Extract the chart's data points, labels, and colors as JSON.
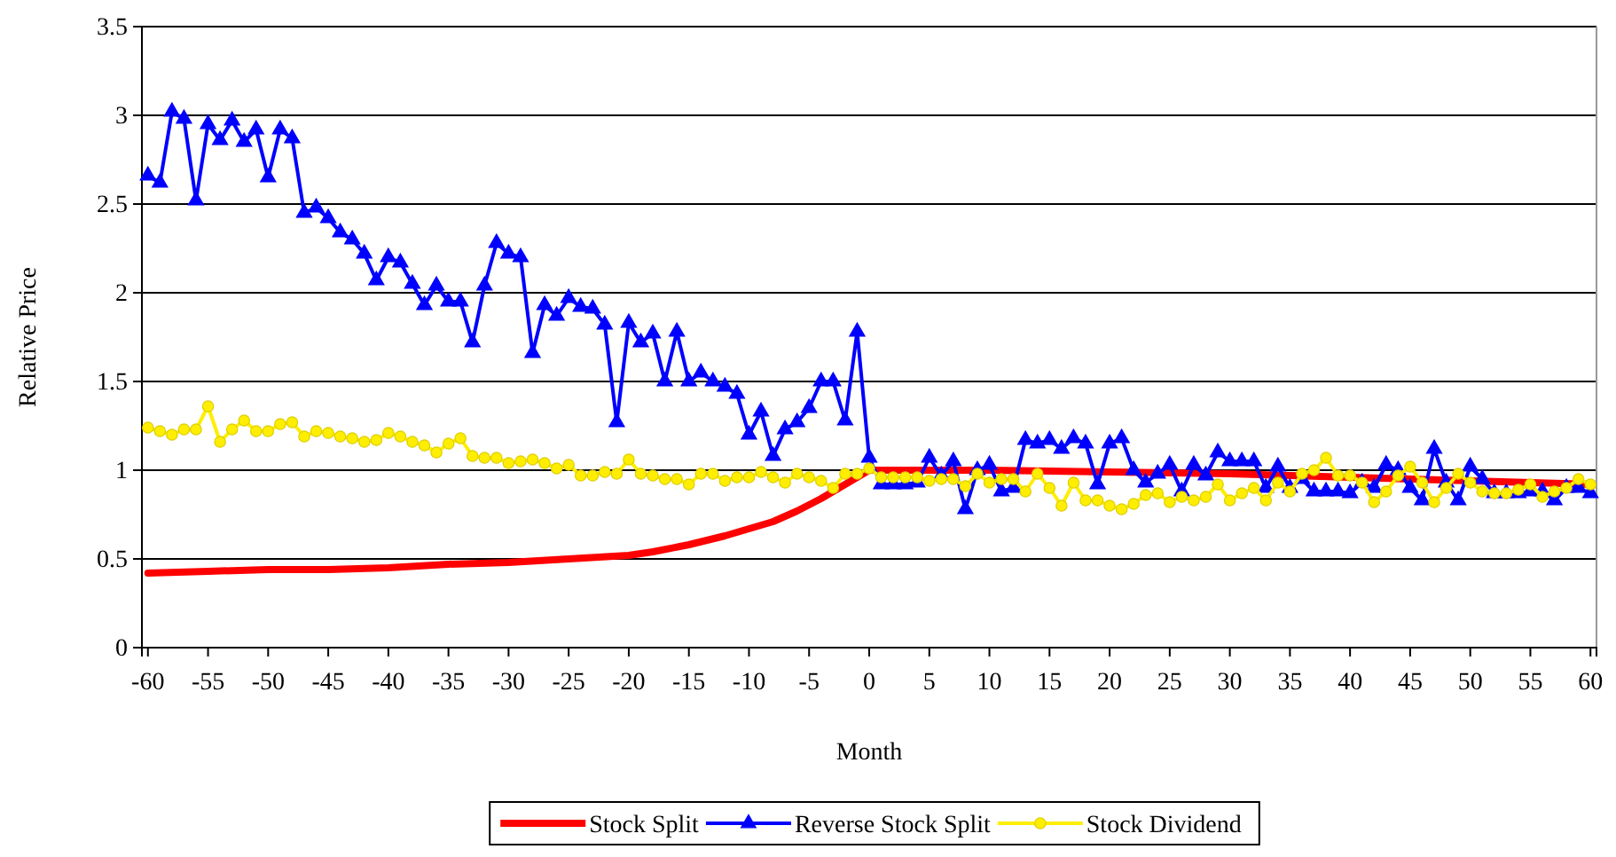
{
  "chart_data": {
    "type": "line",
    "xlabel": "Month",
    "ylabel": "Relative Price",
    "xlim": [
      -60.5,
      60.5
    ],
    "xticks": [
      -60,
      -55,
      -50,
      -45,
      -40,
      -35,
      -30,
      -25,
      -20,
      -15,
      -10,
      -5,
      0,
      5,
      10,
      15,
      20,
      25,
      30,
      35,
      40,
      45,
      50,
      55,
      60
    ],
    "ylim": [
      0,
      3.5
    ],
    "yticks": [
      0,
      {
        "value": 0.5,
        "label": "0.5"
      },
      1,
      {
        "value": 1.5,
        "label": "1.5"
      },
      2,
      {
        "value": 2.5,
        "label": "2.5"
      },
      3,
      {
        "value": 3.5,
        "label": "3.5"
      }
    ],
    "grid": "y",
    "legend": "bottom",
    "x": [
      -60,
      -59,
      -58,
      -57,
      -56,
      -55,
      -54,
      -53,
      -52,
      -51,
      -50,
      -49,
      -48,
      -47,
      -46,
      -45,
      -44,
      -43,
      -42,
      -41,
      -40,
      -39,
      -38,
      -37,
      -36,
      -35,
      -34,
      -33,
      -32,
      -31,
      -30,
      -29,
      -28,
      -27,
      -26,
      -25,
      -24,
      -23,
      -22,
      -21,
      -20,
      -19,
      -18,
      -17,
      -16,
      -15,
      -14,
      -13,
      -12,
      -11,
      -10,
      -9,
      -8,
      -7,
      -6,
      -5,
      -4,
      -3,
      -2,
      -1,
      0,
      1,
      2,
      3,
      4,
      5,
      6,
      7,
      8,
      9,
      10,
      11,
      12,
      13,
      14,
      15,
      16,
      17,
      18,
      19,
      20,
      21,
      22,
      23,
      24,
      25,
      26,
      27,
      28,
      29,
      30,
      31,
      32,
      33,
      34,
      35,
      36,
      37,
      38,
      39,
      40,
      41,
      42,
      43,
      44,
      45,
      46,
      47,
      48,
      49,
      50,
      51,
      52,
      53,
      54,
      55,
      56,
      57,
      58,
      59,
      60
    ],
    "series": [
      {
        "name": "Stock Split",
        "color": "#ff0000",
        "marker": "none",
        "x": [
          -60,
          -55,
          -50,
          -45,
          -40,
          -35,
          -30,
          -25,
          -20,
          -18,
          -15,
          -12,
          -10,
          -8,
          -6,
          -4,
          -2,
          0,
          5,
          10,
          20,
          30,
          40,
          50,
          60
        ],
        "values": [
          0.42,
          0.43,
          0.44,
          0.44,
          0.45,
          0.47,
          0.48,
          0.5,
          0.52,
          0.54,
          0.58,
          0.63,
          0.67,
          0.71,
          0.77,
          0.84,
          0.92,
          1.0,
          1.0,
          1.0,
          0.99,
          0.98,
          0.96,
          0.94,
          0.92
        ]
      },
      {
        "name": "Reverse Stock Split",
        "color": "#0000ff",
        "marker": "triangle",
        "values": [
          2.66,
          2.62,
          3.02,
          2.98,
          2.52,
          2.95,
          2.86,
          2.97,
          2.85,
          2.92,
          2.65,
          2.92,
          2.87,
          2.45,
          2.48,
          2.42,
          2.34,
          2.3,
          2.22,
          2.07,
          2.2,
          2.17,
          2.05,
          1.93,
          2.04,
          1.95,
          1.95,
          1.72,
          2.04,
          2.28,
          2.22,
          2.2,
          1.66,
          1.93,
          1.87,
          1.97,
          1.92,
          1.91,
          1.82,
          1.27,
          1.83,
          1.72,
          1.77,
          1.5,
          1.78,
          1.5,
          1.55,
          1.5,
          1.47,
          1.43,
          1.2,
          1.33,
          1.08,
          1.23,
          1.27,
          1.35,
          1.5,
          1.5,
          1.28,
          1.78,
          1.07,
          0.92,
          0.92,
          0.92,
          0.93,
          1.07,
          0.97,
          1.05,
          0.78,
          1.0,
          1.03,
          0.88,
          0.9,
          1.17,
          1.15,
          1.17,
          1.12,
          1.18,
          1.15,
          0.92,
          1.15,
          1.18,
          1.0,
          0.93,
          0.98,
          1.03,
          0.88,
          1.03,
          0.97,
          1.1,
          1.05,
          1.05,
          1.05,
          0.9,
          1.02,
          0.9,
          0.95,
          0.88,
          0.88,
          0.88,
          0.87,
          0.93,
          0.9,
          1.03,
          1.0,
          0.9,
          0.83,
          1.12,
          0.93,
          0.83,
          1.02,
          0.95,
          0.87,
          0.87,
          0.87,
          0.88,
          0.88,
          0.83,
          0.9,
          0.9,
          0.87
        ]
      },
      {
        "name": "Stock Dividend",
        "color": "#ffee00",
        "marker": "circle",
        "values": [
          1.24,
          1.22,
          1.2,
          1.23,
          1.23,
          1.36,
          1.16,
          1.23,
          1.28,
          1.22,
          1.22,
          1.26,
          1.27,
          1.19,
          1.22,
          1.21,
          1.19,
          1.18,
          1.16,
          1.17,
          1.21,
          1.19,
          1.16,
          1.14,
          1.1,
          1.15,
          1.18,
          1.08,
          1.07,
          1.07,
          1.04,
          1.05,
          1.06,
          1.04,
          1.01,
          1.03,
          0.97,
          0.97,
          0.99,
          0.98,
          1.06,
          0.98,
          0.97,
          0.95,
          0.95,
          0.92,
          0.98,
          0.98,
          0.94,
          0.96,
          0.96,
          0.99,
          0.96,
          0.93,
          0.98,
          0.96,
          0.94,
          0.9,
          0.98,
          0.98,
          1.01,
          0.96,
          0.96,
          0.96,
          0.96,
          0.94,
          0.95,
          0.95,
          0.91,
          0.98,
          0.93,
          0.95,
          0.95,
          0.88,
          0.98,
          0.9,
          0.8,
          0.93,
          0.83,
          0.83,
          0.8,
          0.78,
          0.81,
          0.86,
          0.87,
          0.82,
          0.85,
          0.83,
          0.85,
          0.92,
          0.83,
          0.87,
          0.9,
          0.83,
          0.93,
          0.88,
          0.98,
          1.0,
          1.07,
          0.97,
          0.97,
          0.93,
          0.82,
          0.88,
          0.97,
          1.02,
          0.93,
          0.82,
          0.9,
          0.98,
          0.93,
          0.88,
          0.87,
          0.87,
          0.89,
          0.92,
          0.85,
          0.88,
          0.9,
          0.95,
          0.92
        ]
      }
    ]
  }
}
